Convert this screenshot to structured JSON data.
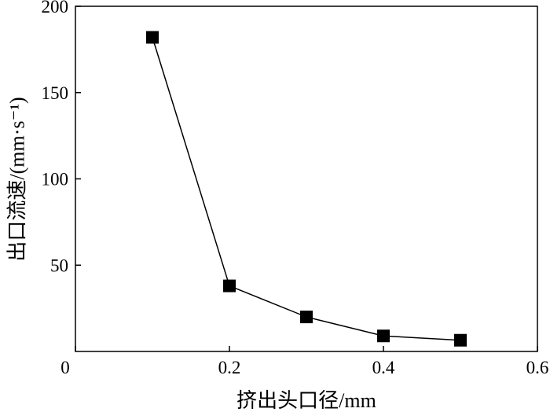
{
  "chart_data": {
    "type": "line",
    "xlabel": "挤出头口径/mm",
    "ylabel": "出口流速/(mm·s⁻¹)",
    "xlim": [
      0,
      0.6
    ],
    "ylim": [
      0,
      200
    ],
    "xticks": [
      "0",
      "0.2",
      "0.4",
      "0.6"
    ],
    "yticks": [
      "50",
      "100",
      "150",
      "200"
    ],
    "grid": false,
    "line_color": "#000000",
    "series": [
      {
        "x": [
          0.1,
          0.2,
          0.3,
          0.4,
          0.5
        ],
        "y": [
          182,
          38,
          20,
          9,
          6.5
        ]
      }
    ]
  }
}
